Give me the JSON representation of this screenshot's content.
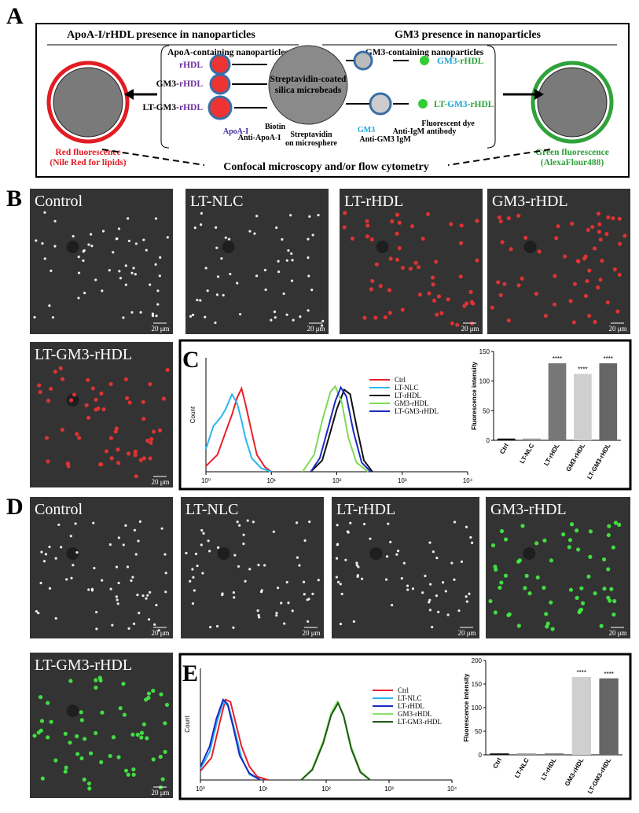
{
  "panel_labels": [
    "A",
    "B",
    "C",
    "D",
    "E"
  ],
  "schematic": {
    "left_header": "ApoA-I/rHDL presence in nanoparticles",
    "right_header": "GM3 presence in nanoparticles",
    "left_group": "ApoA-containing nanoparticles",
    "right_group": "GM3-containing nanoparticles",
    "left_items": [
      [
        "rHDL"
      ],
      [
        "GM3-",
        "rHDL"
      ],
      [
        "LT-GM3-",
        "rHDL"
      ]
    ],
    "right_items": [
      [
        "GM3",
        "-rHDL"
      ],
      [
        "LT-",
        "GM3",
        "-rHDL"
      ]
    ],
    "bead": [
      "Streptavidin-coated",
      "silica microbeads"
    ],
    "parts": {
      "apoa": "ApoA-I",
      "biotin": "Biotin",
      "anti_apoa": "Anti-ApoA-I",
      "strep": [
        "Streptavidin",
        "on microsphere"
      ],
      "gm3": "GM3",
      "anti_gm3": "Anti-GM3 IgM",
      "anti_igm": "Anti-IgM antibody",
      "dye": "Fluorescent dye"
    },
    "red": [
      "Red fluorescence",
      "(Nile Red for lipids)"
    ],
    "green": [
      "Green fluorescence",
      "(AlexaFlour488)"
    ],
    "method": "Confocal microscopy and/or flow cytometry"
  },
  "micrographs_b": [
    {
      "label": "Control",
      "scale": "20 μm"
    },
    {
      "label": "LT-NLC",
      "scale": "20 μm"
    },
    {
      "label": "LT-rHDL",
      "scale": "20 μm"
    },
    {
      "label": "GM3-rHDL",
      "scale": "20 μm"
    },
    {
      "label": "LT-GM3-rHDL",
      "scale": "20 μm"
    }
  ],
  "micrographs_d": [
    {
      "label": "Control",
      "scale": "20 μm"
    },
    {
      "label": "LT-NLC",
      "scale": "20 μm"
    },
    {
      "label": "LT-rHDL",
      "scale": "20 μm"
    },
    {
      "label": "GM3-rHDL",
      "scale": "20 μm"
    },
    {
      "label": "LT-GM3-rHDL",
      "scale": "20 μm"
    }
  ],
  "chart_data": [
    {
      "type": "line",
      "y_label": "Count",
      "xlog": true,
      "xlim": [
        1,
        10000
      ],
      "xticks": [
        {
          "value": 1,
          "label": "10⁰"
        },
        {
          "value": 10,
          "label": "10¹"
        },
        {
          "value": 100,
          "label": "10²"
        },
        {
          "value": 1000,
          "label": "10³"
        },
        {
          "value": 10000,
          "label": "10⁴"
        }
      ],
      "ylim": [
        0,
        100
      ],
      "series": [
        {
          "name": "Ctrl",
          "color": "#e8202a",
          "x": [
            1,
            1.5,
            2,
            2.5,
            3,
            3.5,
            4,
            5,
            6,
            8,
            10
          ],
          "values": [
            5,
            15,
            35,
            50,
            65,
            73,
            60,
            35,
            15,
            4,
            0
          ]
        },
        {
          "name": "LT-NLC",
          "color": "#29b6f0",
          "x": [
            1,
            1.3,
            1.7,
            2,
            2.5,
            3,
            3.5,
            4,
            5,
            7,
            10
          ],
          "values": [
            20,
            40,
            48,
            55,
            68,
            60,
            45,
            30,
            12,
            3,
            0
          ]
        },
        {
          "name": "LT-rHDL",
          "color": "#111111",
          "x": [
            40,
            60,
            80,
            100,
            130,
            160,
            200,
            260,
            350
          ],
          "values": [
            0,
            10,
            35,
            55,
            72,
            68,
            40,
            10,
            0
          ]
        },
        {
          "name": "GM3-rHDL",
          "color": "#7ed957",
          "x": [
            30,
            45,
            60,
            80,
            95,
            120,
            150,
            200,
            300
          ],
          "values": [
            0,
            15,
            45,
            70,
            75,
            60,
            30,
            8,
            0
          ]
        },
        {
          "name": "LT-GM3-rHDL",
          "color": "#1a2bc0",
          "x": [
            40,
            55,
            75,
            95,
            115,
            140,
            180,
            240,
            330
          ],
          "values": [
            0,
            12,
            40,
            62,
            74,
            66,
            35,
            8,
            0
          ]
        }
      ]
    },
    {
      "type": "bar",
      "y_label": "Fluorescence intensity",
      "categories": [
        "Ctrl",
        "LT-NLC",
        "LT-rHDL",
        "GM3-rHDL",
        "LT-GM3-rHDL"
      ],
      "values": [
        3,
        3,
        130,
        112,
        130
      ],
      "colors": [
        "#111111",
        "#999999",
        "#777777",
        "#cfcfcf",
        "#666666"
      ],
      "significance": [
        null,
        null,
        "****",
        "****",
        "****"
      ],
      "ylim": [
        0,
        150
      ],
      "yticks": [
        0,
        50,
        100,
        150
      ]
    },
    {
      "type": "line",
      "y_label": "Count",
      "xlog": true,
      "xlim": [
        1,
        10000
      ],
      "xticks": [
        {
          "value": 1,
          "label": "10⁰"
        },
        {
          "value": 10,
          "label": "10¹"
        },
        {
          "value": 100,
          "label": "10²"
        },
        {
          "value": 1000,
          "label": "10³"
        },
        {
          "value": 10000,
          "label": "10⁴"
        }
      ],
      "ylim": [
        0,
        100
      ],
      "series": [
        {
          "name": "Ctrl",
          "color": "#e8202a",
          "x": [
            1,
            1.5,
            2,
            2.5,
            3,
            3.5,
            4.5,
            6,
            8,
            12
          ],
          "values": [
            8,
            20,
            50,
            72,
            70,
            55,
            30,
            12,
            3,
            0
          ]
        },
        {
          "name": "LT-NLC",
          "color": "#29b6f0",
          "x": [
            1,
            1.4,
            1.8,
            2.3,
            2.8,
            3.5,
            4.5,
            6,
            9
          ],
          "values": [
            10,
            25,
            50,
            70,
            66,
            45,
            20,
            5,
            0
          ]
        },
        {
          "name": "LT-rHDL",
          "color": "#1a2bc0",
          "x": [
            1,
            1.4,
            1.8,
            2.3,
            2.7,
            3.3,
            4.2,
            6,
            9
          ],
          "values": [
            12,
            30,
            55,
            72,
            68,
            48,
            22,
            6,
            0
          ]
        },
        {
          "name": "GM3-rHDL",
          "color": "#8be06a",
          "x": [
            40,
            60,
            90,
            120,
            150,
            190,
            250,
            350,
            500
          ],
          "values": [
            0,
            10,
            35,
            60,
            70,
            58,
            30,
            8,
            0
          ]
        },
        {
          "name": "LT-GM3-rHDL",
          "color": "#1c5a12",
          "x": [
            40,
            60,
            90,
            120,
            155,
            190,
            250,
            350,
            500
          ],
          "values": [
            0,
            9,
            33,
            58,
            69,
            57,
            28,
            7,
            0
          ]
        }
      ]
    },
    {
      "type": "bar",
      "y_label": "Fluorescence intensity",
      "categories": [
        "Ctrl",
        "LT-NLC",
        "LT-rHDL",
        "GM3-rHDL",
        "LT-GM3-rHDL"
      ],
      "values": [
        3,
        3,
        3,
        165,
        162
      ],
      "colors": [
        "#111111",
        "#999999",
        "#777777",
        "#cfcfcf",
        "#666666"
      ],
      "significance": [
        null,
        null,
        null,
        "****",
        "****"
      ],
      "ylim": [
        0,
        200
      ],
      "yticks": [
        0,
        50,
        100,
        150,
        200
      ]
    }
  ]
}
